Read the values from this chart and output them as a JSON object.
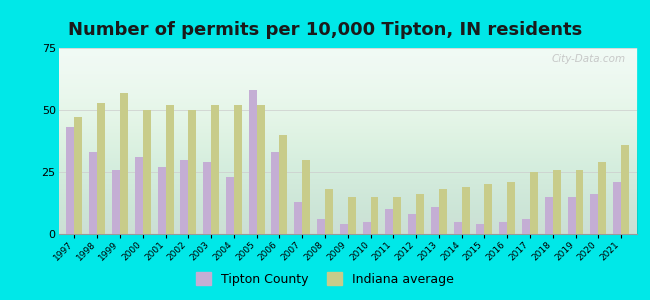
{
  "years": [
    1997,
    1998,
    1999,
    2000,
    2001,
    2002,
    2003,
    2004,
    2005,
    2006,
    2007,
    2008,
    2009,
    2010,
    2011,
    2012,
    2013,
    2014,
    2015,
    2016,
    2017,
    2018,
    2019,
    2020,
    2021
  ],
  "tipton": [
    43,
    33,
    26,
    31,
    27,
    30,
    29,
    23,
    58,
    33,
    13,
    6,
    4,
    5,
    10,
    8,
    11,
    5,
    4,
    5,
    6,
    15,
    15,
    16,
    21
  ],
  "indiana": [
    47,
    53,
    57,
    50,
    52,
    50,
    52,
    52,
    52,
    40,
    30,
    18,
    15,
    15,
    15,
    16,
    18,
    19,
    20,
    21,
    25,
    26,
    26,
    29,
    36
  ],
  "tipton_color": "#c4aed4",
  "indiana_color": "#c8cc8a",
  "title": "Number of permits per 10,000 Tipton, IN residents",
  "title_fontsize": 13,
  "ylim": [
    0,
    75
  ],
  "yticks": [
    0,
    25,
    50,
    75
  ],
  "bg_outer": "#00e8e8",
  "bg_plot_top": "#f0faf5",
  "bg_plot_bottom": "#d8edd8",
  "legend_tipton": "Tipton County",
  "legend_indiana": "Indiana average",
  "watermark": "City-Data.com"
}
